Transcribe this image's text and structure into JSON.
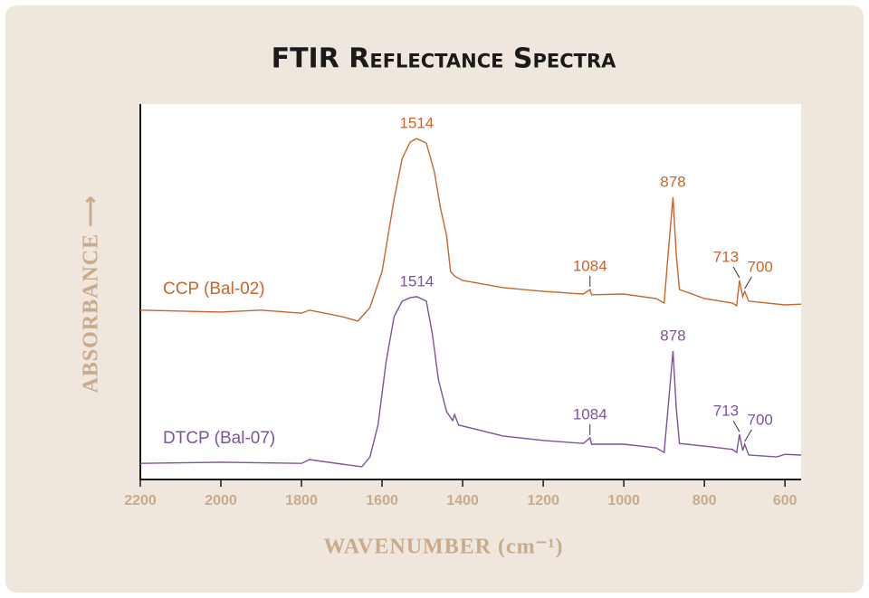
{
  "chart_data": {
    "type": "line",
    "title": "FTIR Reflectance Spectra",
    "x_label": "WAVENUMBER (cm⁻¹)",
    "y_label": "ABSORBANCE ⟶",
    "xlim": [
      2200,
      560
    ],
    "xticks": [
      2200,
      2000,
      1800,
      1600,
      1400,
      1200,
      1000,
      800,
      600
    ],
    "ylim": [
      0,
      100
    ],
    "series": [
      {
        "name": "CCP (Bal-02)",
        "color": "#c9652d",
        "x": [
          2200,
          2000,
          1900,
          1800,
          1780,
          1700,
          1660,
          1630,
          1600,
          1570,
          1550,
          1530,
          1514,
          1490,
          1470,
          1455,
          1440,
          1430,
          1420,
          1400,
          1300,
          1200,
          1100,
          1084,
          1080,
          1000,
          920,
          900,
          890,
          878,
          870,
          862,
          800,
          730,
          720,
          713,
          705,
          700,
          690,
          600,
          560
        ],
        "values": [
          45.1,
          44.6,
          45.1,
          44.3,
          45.1,
          43.4,
          42.2,
          45.8,
          55.4,
          74.7,
          85.5,
          89.9,
          90.8,
          89.6,
          81.9,
          72.3,
          65.1,
          55.4,
          54.2,
          53.0,
          51.1,
          50.1,
          49.4,
          50.6,
          49.2,
          49.4,
          48.2,
          47.0,
          60.2,
          75.2,
          60.2,
          50.6,
          48.2,
          47.0,
          46.3,
          53.0,
          48.7,
          50.1,
          47.5,
          46.5,
          46.7
        ],
        "peaks": [
          1514,
          1084,
          878,
          713,
          700
        ]
      },
      {
        "name": "DTCP (Bal-07)",
        "color": "#7d539c",
        "x": [
          2200,
          2000,
          1800,
          1780,
          1700,
          1650,
          1630,
          1610,
          1590,
          1570,
          1550,
          1530,
          1514,
          1490,
          1475,
          1460,
          1440,
          1425,
          1420,
          1410,
          1300,
          1200,
          1100,
          1084,
          1080,
          1000,
          920,
          900,
          890,
          878,
          870,
          862,
          800,
          730,
          720,
          713,
          705,
          700,
          690,
          620,
          600,
          560
        ],
        "values": [
          4.3,
          4.6,
          4.3,
          5.3,
          4.1,
          3.4,
          6.0,
          14.5,
          31.3,
          43.4,
          47.5,
          48.4,
          48.7,
          47.5,
          38.6,
          26.5,
          18.1,
          15.7,
          17.3,
          14.5,
          11.6,
          10.4,
          9.6,
          11.1,
          9.4,
          9.4,
          8.4,
          7.2,
          19.3,
          34.2,
          19.3,
          9.6,
          8.9,
          8.0,
          7.2,
          12.0,
          7.7,
          9.4,
          6.5,
          6.0,
          6.7,
          6.5
        ],
        "peaks": [
          1514,
          1084,
          878,
          713,
          700
        ]
      }
    ]
  }
}
